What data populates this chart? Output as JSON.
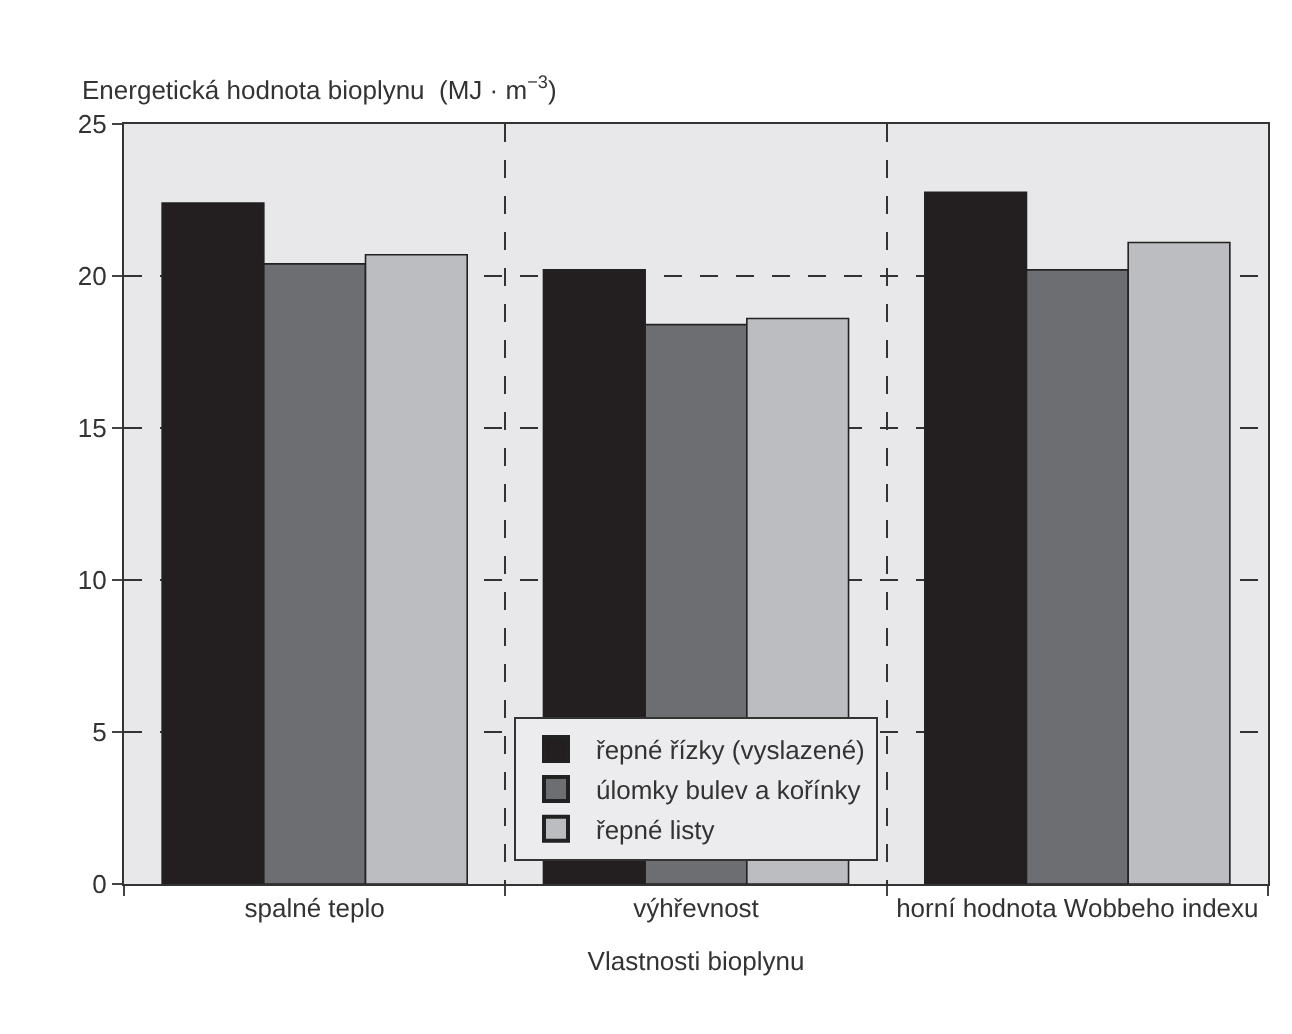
{
  "chart_data": {
    "type": "bar",
    "ylabel": "Energetická hodnota bioplynu  (MJ · m$^{−3}$)",
    "xlabel": "Vlastnosti bioplynu",
    "categories": [
      "spalné teplo",
      "výhřevnost",
      "horní hodnota Wobbeho indexu"
    ],
    "series": [
      {
        "name": "řepné řízky (vyslazené)",
        "color": "#231f20",
        "values": [
          22.4,
          20.2,
          22.75
        ]
      },
      {
        "name": "úlomky bulev a kořínky",
        "color": "#6d6e71",
        "values": [
          20.4,
          18.4,
          20.2
        ]
      },
      {
        "name": "řepné listy",
        "color": "#bcbdc0",
        "values": [
          20.7,
          18.6,
          21.1
        ]
      }
    ],
    "ylim": [
      0,
      25
    ],
    "yticks": [
      0,
      5,
      10,
      15,
      20,
      25
    ],
    "grid": true,
    "line_style": "dashed",
    "legend": "bottom"
  }
}
